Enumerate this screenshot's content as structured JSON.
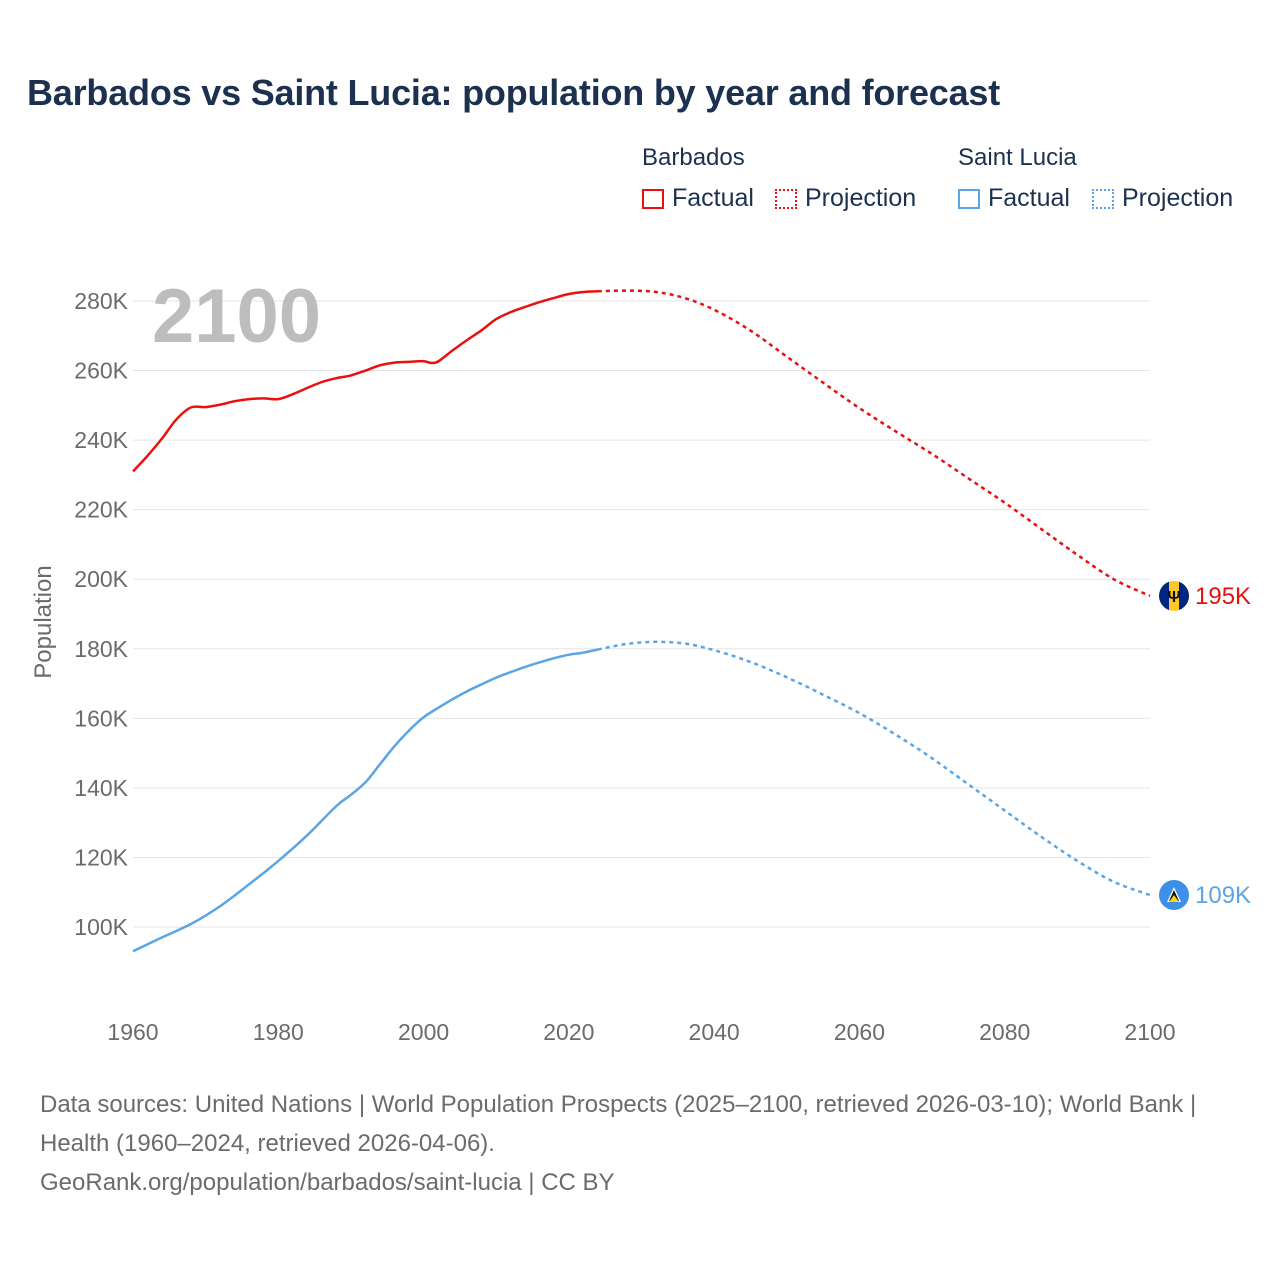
{
  "colors": {
    "barbados": "#e8110f",
    "saint_lucia": "#5aa5e6",
    "title": "#1c3150",
    "axis_text": "#6b6b6b",
    "grid": "#e5e5e5",
    "year_watermark": "#bdbdbd"
  },
  "legend": {
    "barbados": {
      "title": "Barbados",
      "factual": "Factual",
      "projection": "Projection"
    },
    "saint_lucia": {
      "title": "Saint Lucia",
      "factual": "Factual",
      "projection": "Projection"
    }
  },
  "footer": {
    "line1": "Data sources: United Nations | World Population Prospects (2025–2100, retrieved 2026-03-10); World Bank | Health (1960–2024, retrieved 2026-04-06).",
    "line2": "GeoRank.org/population/barbados/saint-lucia | CC BY"
  },
  "chart_data": {
    "type": "line",
    "title": "Barbados vs Saint Lucia: population by year and forecast",
    "ylabel": "Population",
    "xlabel": "",
    "year_label": "2100",
    "xlim": [
      1960,
      2100
    ],
    "ylim": [
      82000,
      290000
    ],
    "x_ticks": [
      1960,
      1980,
      2000,
      2020,
      2040,
      2060,
      2080,
      2100
    ],
    "y_ticks": [
      100000,
      120000,
      140000,
      160000,
      180000,
      200000,
      220000,
      240000,
      260000,
      280000
    ],
    "y_tick_labels": [
      "100K",
      "120K",
      "140K",
      "160K",
      "180K",
      "200K",
      "220K",
      "240K",
      "260K",
      "280K"
    ],
    "grid": true,
    "series": [
      {
        "name": "Barbados",
        "end_label": "195K",
        "flag_icon": "barbados-flag-icon",
        "factual": [
          [
            1960,
            231000
          ],
          [
            1962,
            235500
          ],
          [
            1964,
            240500
          ],
          [
            1966,
            246000
          ],
          [
            1968,
            249400
          ],
          [
            1970,
            249500
          ],
          [
            1972,
            250200
          ],
          [
            1974,
            251200
          ],
          [
            1976,
            251800
          ],
          [
            1978,
            252000
          ],
          [
            1980,
            251800
          ],
          [
            1982,
            253200
          ],
          [
            1984,
            255000
          ],
          [
            1986,
            256700
          ],
          [
            1988,
            257800
          ],
          [
            1990,
            258600
          ],
          [
            1992,
            260000
          ],
          [
            1994,
            261500
          ],
          [
            1996,
            262300
          ],
          [
            1998,
            262500
          ],
          [
            2000,
            262700
          ],
          [
            2001,
            262200
          ],
          [
            2002,
            262600
          ],
          [
            2004,
            265800
          ],
          [
            2006,
            268800
          ],
          [
            2008,
            271600
          ],
          [
            2010,
            274800
          ],
          [
            2012,
            276800
          ],
          [
            2014,
            278300
          ],
          [
            2016,
            279700
          ],
          [
            2018,
            280900
          ],
          [
            2020,
            282000
          ],
          [
            2022,
            282600
          ],
          [
            2024,
            282800
          ]
        ],
        "projection": [
          [
            2024,
            282800
          ],
          [
            2028,
            283000
          ],
          [
            2032,
            282600
          ],
          [
            2036,
            280800
          ],
          [
            2040,
            277500
          ],
          [
            2045,
            271500
          ],
          [
            2050,
            264000
          ],
          [
            2055,
            256500
          ],
          [
            2060,
            249200
          ],
          [
            2065,
            242500
          ],
          [
            2070,
            236000
          ],
          [
            2075,
            229000
          ],
          [
            2080,
            222000
          ],
          [
            2085,
            214500
          ],
          [
            2090,
            207000
          ],
          [
            2095,
            200000
          ],
          [
            2100,
            195200
          ]
        ]
      },
      {
        "name": "Saint Lucia",
        "end_label": "109K",
        "flag_icon": "saint-lucia-flag-icon",
        "factual": [
          [
            1960,
            93000
          ],
          [
            1964,
            97000
          ],
          [
            1968,
            100900
          ],
          [
            1972,
            106000
          ],
          [
            1976,
            112300
          ],
          [
            1980,
            119000
          ],
          [
            1984,
            126400
          ],
          [
            1988,
            134800
          ],
          [
            1990,
            138000
          ],
          [
            1992,
            141600
          ],
          [
            1994,
            146800
          ],
          [
            1996,
            152000
          ],
          [
            1998,
            156500
          ],
          [
            2000,
            160300
          ],
          [
            2002,
            163000
          ],
          [
            2004,
            165500
          ],
          [
            2006,
            167800
          ],
          [
            2008,
            169800
          ],
          [
            2010,
            171700
          ],
          [
            2012,
            173300
          ],
          [
            2014,
            174800
          ],
          [
            2016,
            176100
          ],
          [
            2018,
            177300
          ],
          [
            2020,
            178300
          ],
          [
            2022,
            178900
          ],
          [
            2024,
            179800
          ]
        ],
        "projection": [
          [
            2024,
            179800
          ],
          [
            2028,
            181400
          ],
          [
            2032,
            182000
          ],
          [
            2036,
            181500
          ],
          [
            2040,
            179600
          ],
          [
            2045,
            176200
          ],
          [
            2050,
            171800
          ],
          [
            2055,
            166800
          ],
          [
            2060,
            161500
          ],
          [
            2065,
            155300
          ],
          [
            2070,
            148500
          ],
          [
            2075,
            141000
          ],
          [
            2080,
            133500
          ],
          [
            2085,
            126000
          ],
          [
            2090,
            119000
          ],
          [
            2095,
            113000
          ],
          [
            2100,
            109200
          ]
        ]
      }
    ]
  }
}
